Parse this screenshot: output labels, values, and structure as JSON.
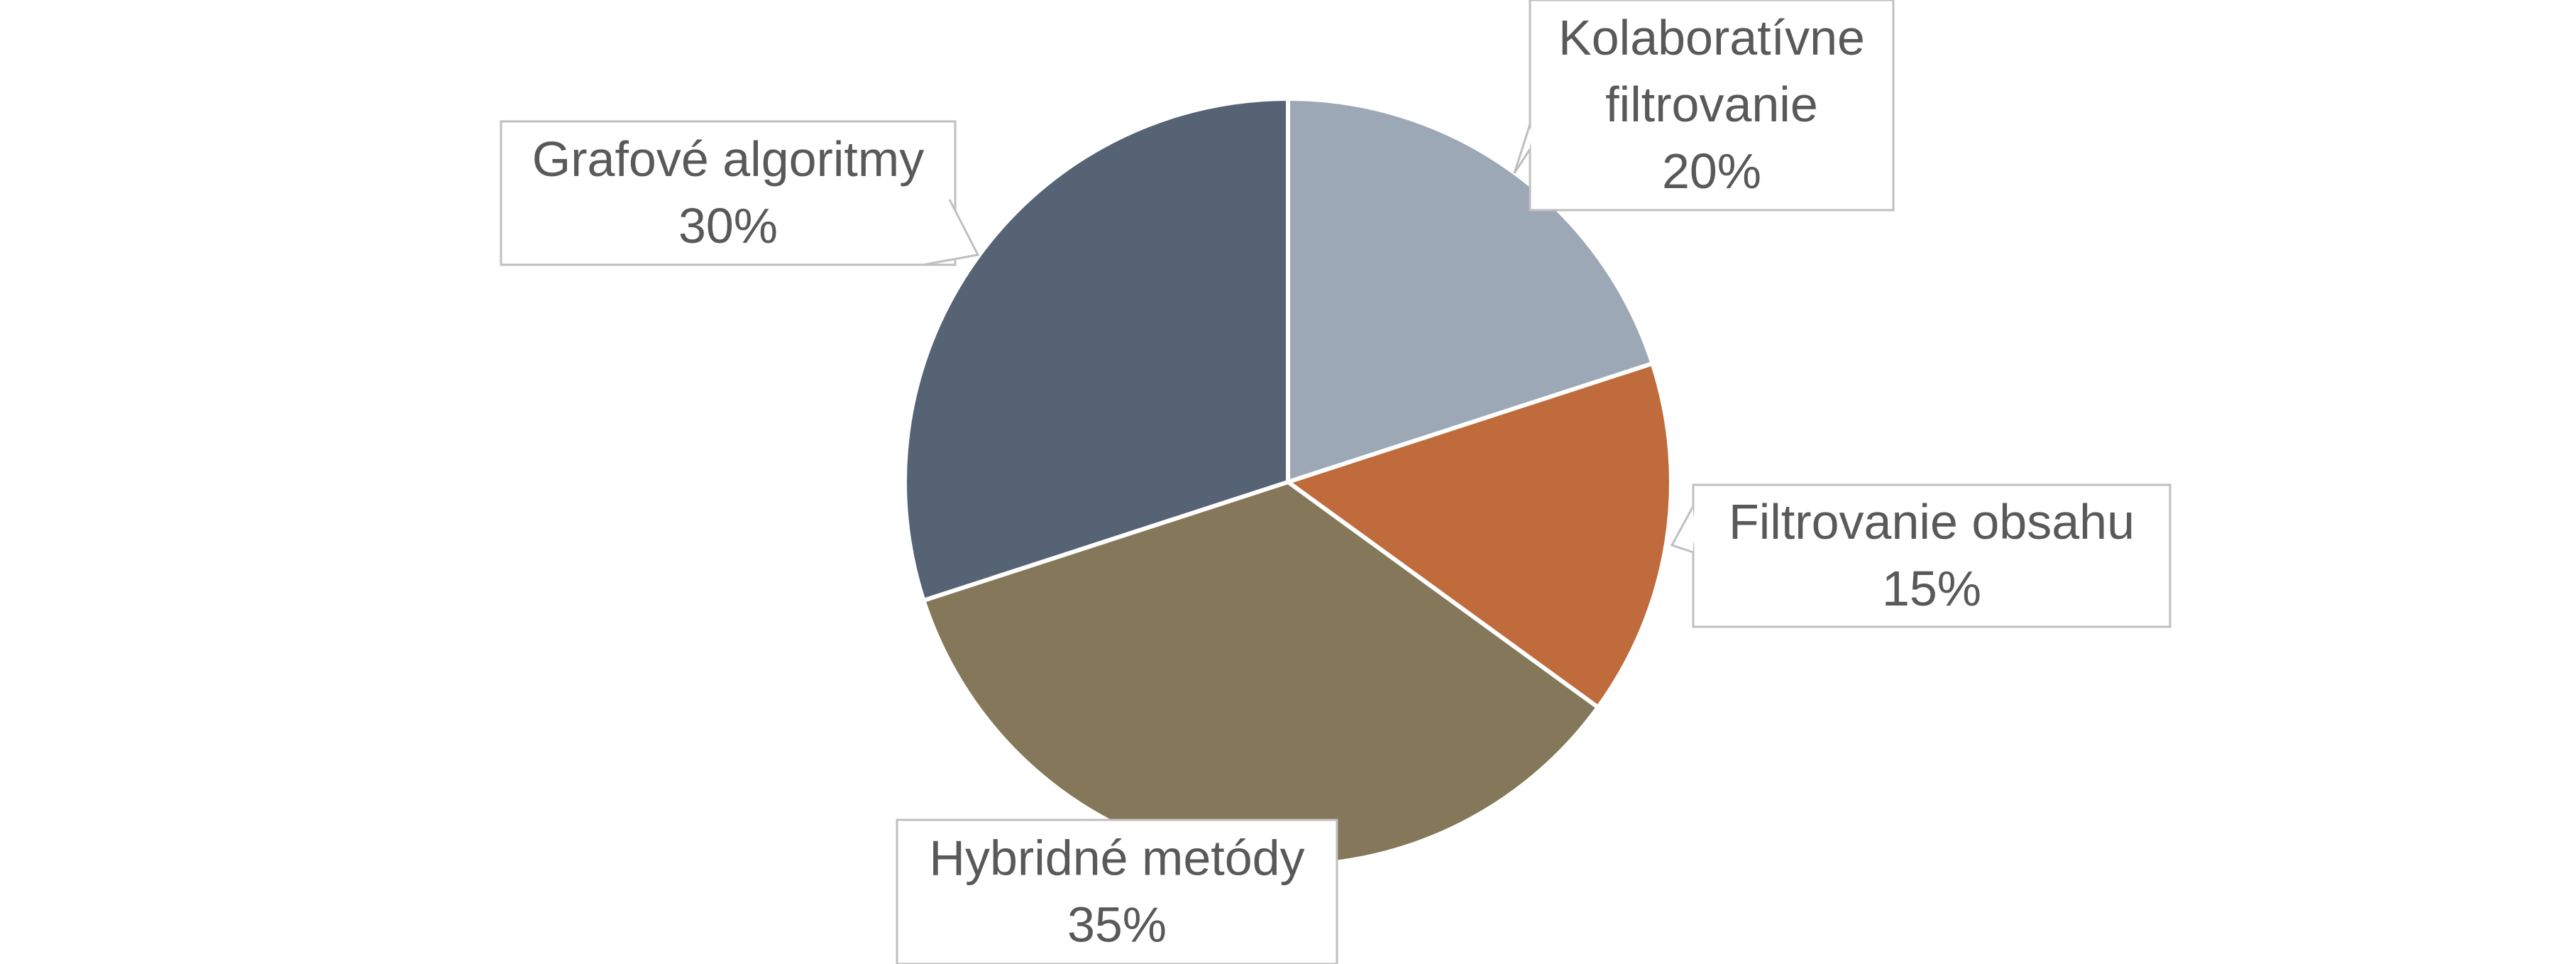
{
  "chart_data": {
    "type": "pie",
    "title": "",
    "slices": [
      {
        "label": "Kolaboratívne filtrovanie",
        "label_lines": [
          "Kolaboratívne",
          "filtrovanie"
        ],
        "value": 20,
        "value_label": "20%",
        "color": "#9ca8b6"
      },
      {
        "label": "Filtrovanie obsahu",
        "label_lines": [
          "Filtrovanie obsahu"
        ],
        "value": 15,
        "value_label": "15%",
        "color": "#bf6b3b"
      },
      {
        "label": "Hybridné metódy",
        "label_lines": [
          "Hybridné metódy"
        ],
        "value": 35,
        "value_label": "35%",
        "color": "#857759"
      },
      {
        "label": "Grafové algoritmy",
        "label_lines": [
          "Grafové algoritmy"
        ],
        "value": 30,
        "value_label": "30%",
        "color": "#556375"
      }
    ],
    "start_angle": "12 o'clock",
    "direction": "clockwise",
    "legend": "none",
    "data_labels": "callouts with category name and percentage",
    "callout_border_color": "#bfbfbf",
    "text_color": "#595959",
    "slice_border_color": "#ffffff"
  }
}
